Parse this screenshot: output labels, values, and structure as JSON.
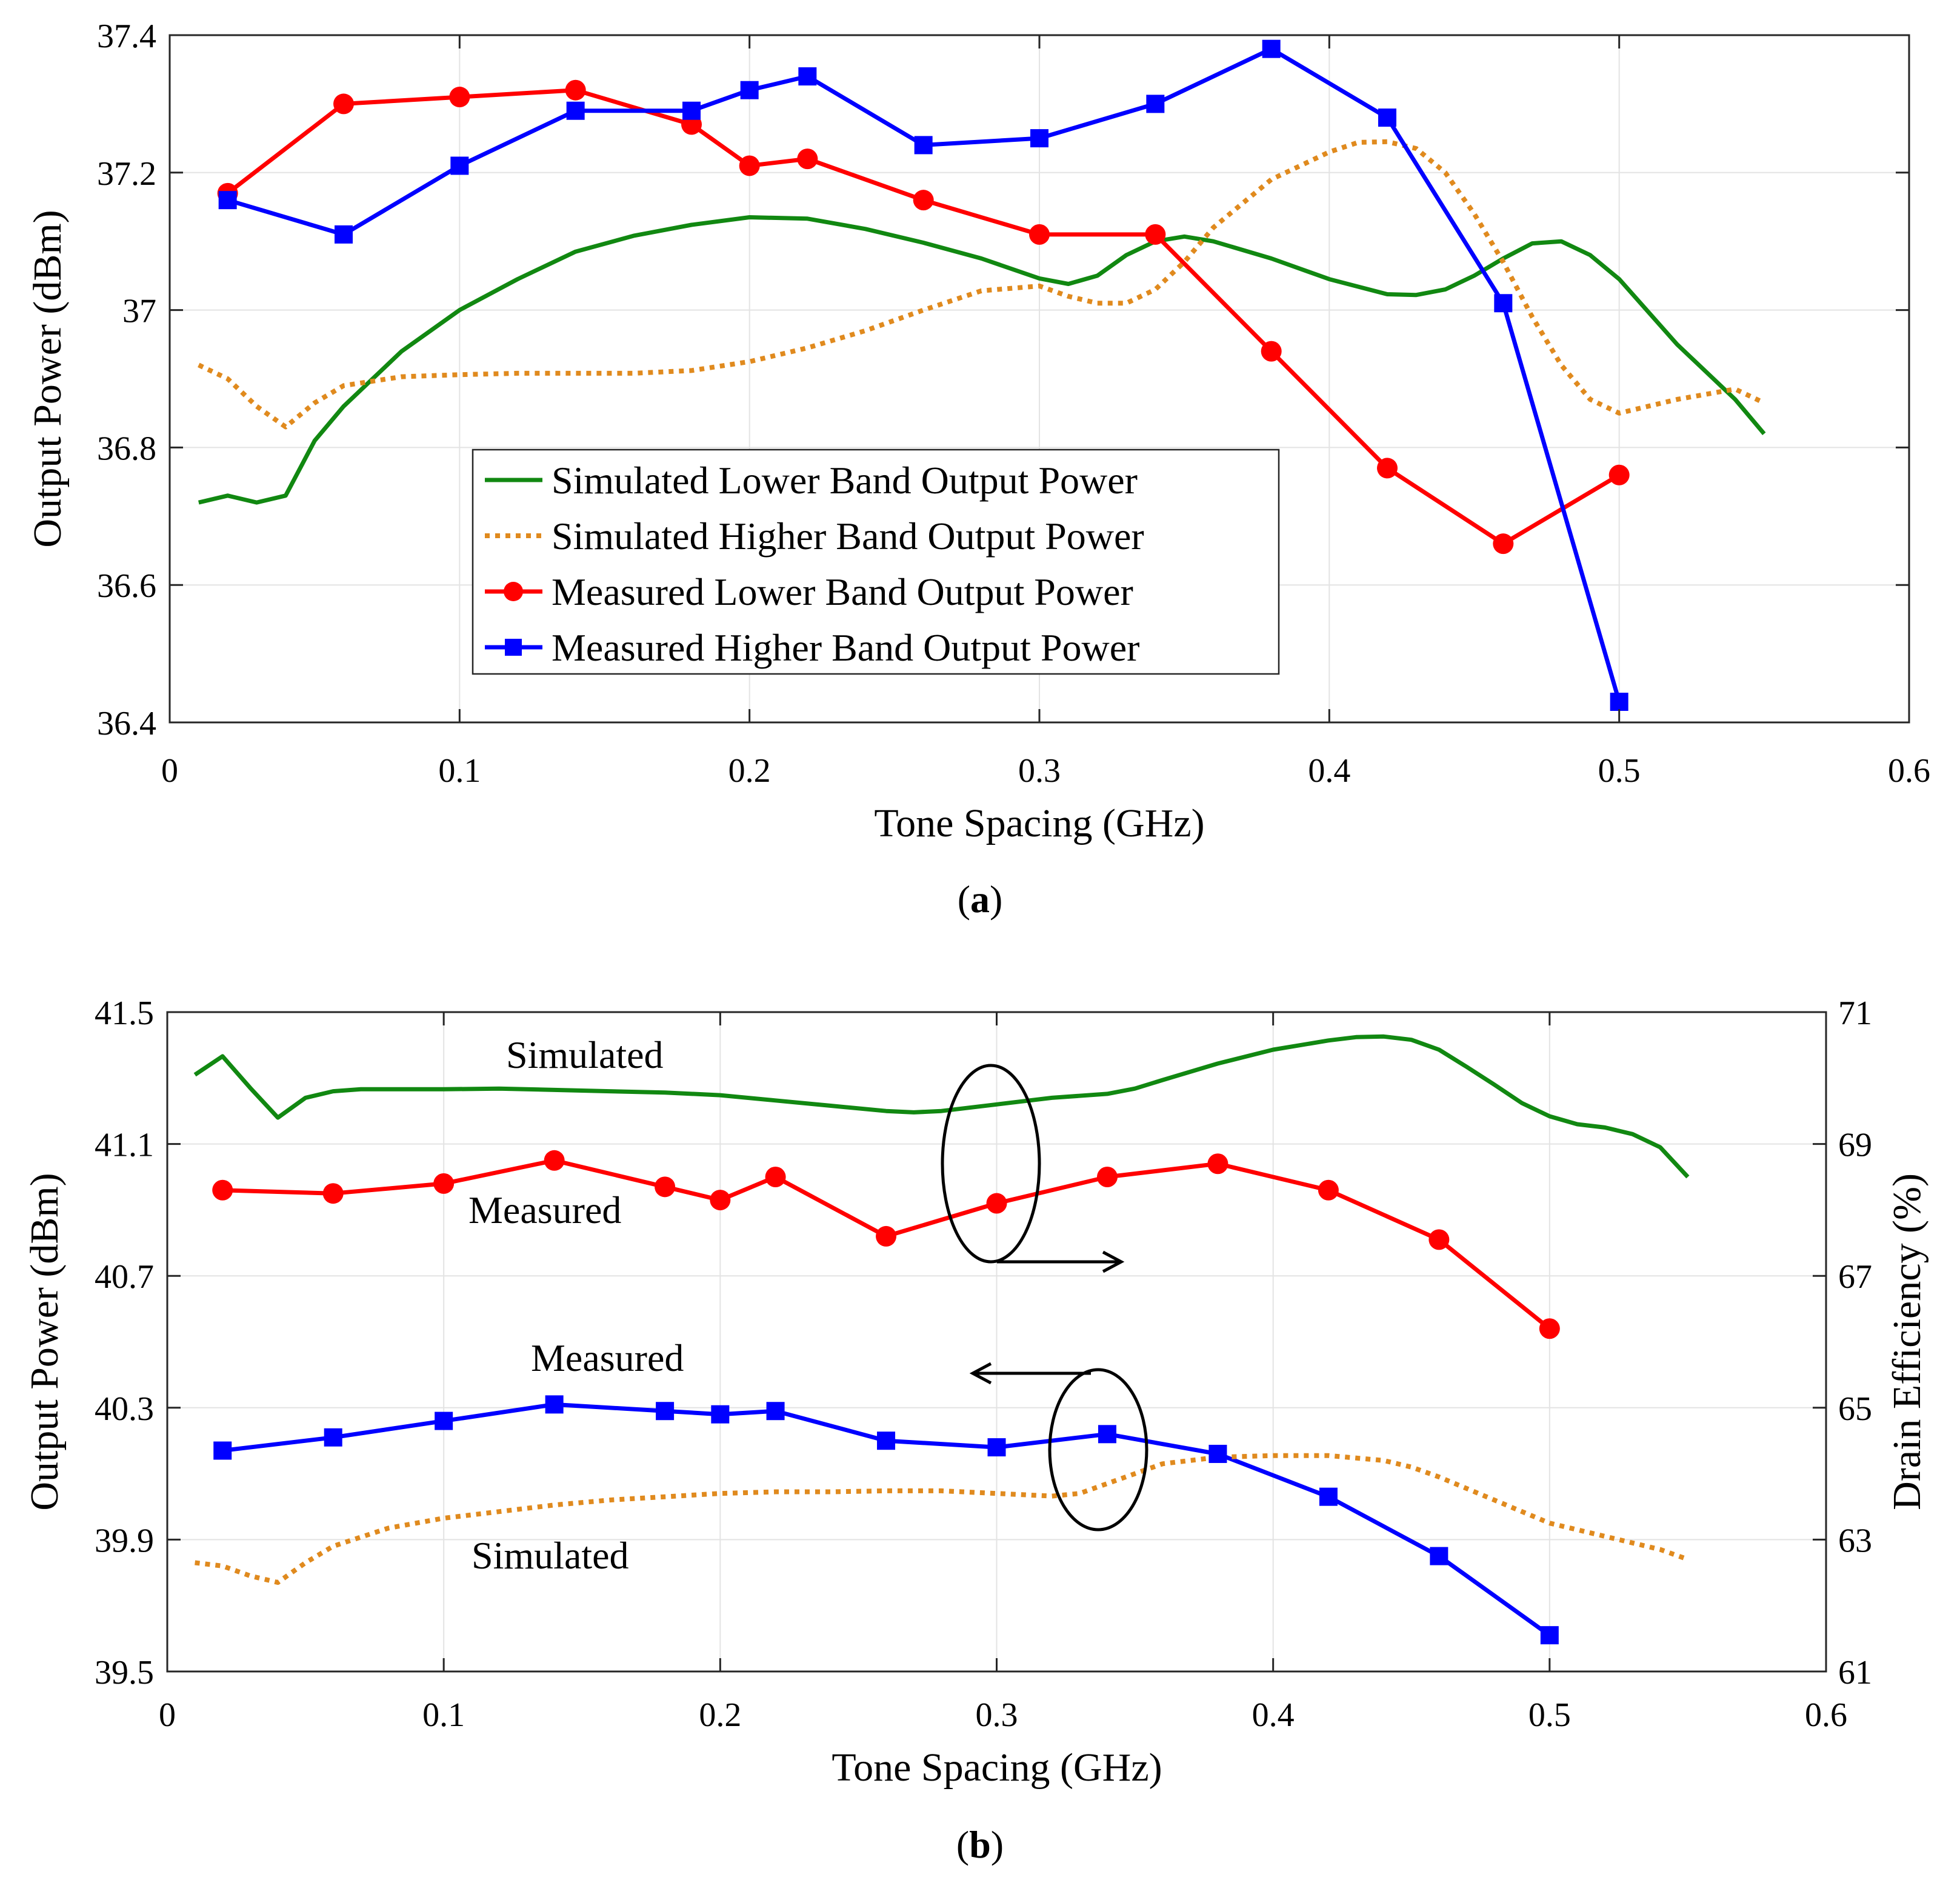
{
  "chart_data": [
    {
      "id": "a",
      "type": "line",
      "caption_label": "a",
      "xlabel": "Tone Spacing (GHz)",
      "ylabel": "Output Power (dBm)",
      "xlim": [
        0,
        0.6
      ],
      "ylim": [
        36.4,
        37.4
      ],
      "xticks": [
        "0",
        "0.1",
        "0.2",
        "0.3",
        "0.4",
        "0.5",
        "0.6"
      ],
      "yticks": [
        "36.4",
        "36.6",
        "36.8",
        "37",
        "37.2",
        "37.4"
      ],
      "grid": true,
      "legend_position": "center",
      "series": [
        {
          "name": "Simulated Lower Band Output Power",
          "color": "#118811",
          "style": "solid",
          "marker": "none",
          "x": [
            0.01,
            0.02,
            0.03,
            0.04,
            0.05,
            0.06,
            0.08,
            0.1,
            0.12,
            0.14,
            0.16,
            0.18,
            0.2,
            0.22,
            0.24,
            0.26,
            0.28,
            0.3,
            0.31,
            0.32,
            0.33,
            0.34,
            0.35,
            0.36,
            0.38,
            0.4,
            0.42,
            0.43,
            0.44,
            0.45,
            0.46,
            0.47,
            0.48,
            0.49,
            0.5,
            0.52,
            0.54,
            0.55
          ],
          "y": [
            36.72,
            36.73,
            36.72,
            36.73,
            36.81,
            36.86,
            36.94,
            37.0,
            37.045,
            37.085,
            37.108,
            37.124,
            37.135,
            37.133,
            37.118,
            37.098,
            37.075,
            37.046,
            37.038,
            37.05,
            37.08,
            37.1,
            37.107,
            37.1,
            37.075,
            37.045,
            37.023,
            37.022,
            37.03,
            37.05,
            37.075,
            37.097,
            37.1,
            37.08,
            37.045,
            36.95,
            36.87,
            36.82
          ]
        },
        {
          "name": "Simulated Higher Band Output Power",
          "color": "#E08A1E",
          "style": "dotted",
          "marker": "none",
          "x": [
            0.01,
            0.02,
            0.03,
            0.04,
            0.05,
            0.06,
            0.08,
            0.1,
            0.12,
            0.14,
            0.16,
            0.18,
            0.2,
            0.22,
            0.24,
            0.26,
            0.28,
            0.3,
            0.31,
            0.32,
            0.33,
            0.34,
            0.35,
            0.36,
            0.38,
            0.4,
            0.41,
            0.42,
            0.43,
            0.44,
            0.45,
            0.46,
            0.47,
            0.48,
            0.49,
            0.5,
            0.52,
            0.54,
            0.55
          ],
          "y": [
            36.92,
            36.9,
            36.86,
            36.83,
            36.865,
            36.89,
            36.903,
            36.906,
            36.908,
            36.908,
            36.908,
            36.912,
            36.925,
            36.945,
            36.97,
            37.0,
            37.028,
            37.035,
            37.02,
            37.01,
            37.01,
            37.03,
            37.07,
            37.12,
            37.19,
            37.23,
            37.244,
            37.245,
            37.235,
            37.2,
            37.14,
            37.07,
            36.99,
            36.92,
            36.87,
            36.85,
            36.87,
            36.885,
            36.865
          ]
        },
        {
          "name": "Measured Lower Band Output Power",
          "color": "#FF0000",
          "style": "solid",
          "marker": "circle",
          "x": [
            0.02,
            0.06,
            0.1,
            0.14,
            0.18,
            0.2,
            0.22,
            0.26,
            0.3,
            0.34,
            0.38,
            0.42,
            0.46,
            0.5
          ],
          "y": [
            37.17,
            37.3,
            37.31,
            37.32,
            37.27,
            37.21,
            37.22,
            37.16,
            37.11,
            37.11,
            36.94,
            36.77,
            36.66,
            36.76
          ]
        },
        {
          "name": "Measured Higher Band Output Power",
          "color": "#0000FF",
          "style": "solid",
          "marker": "square",
          "x": [
            0.02,
            0.06,
            0.1,
            0.14,
            0.18,
            0.2,
            0.22,
            0.26,
            0.3,
            0.34,
            0.38,
            0.42,
            0.46,
            0.5
          ],
          "y": [
            37.16,
            37.11,
            37.21,
            37.29,
            37.29,
            37.32,
            37.34,
            37.24,
            37.25,
            37.3,
            37.38,
            37.28,
            37.01,
            36.43
          ]
        }
      ]
    },
    {
      "id": "b",
      "type": "line",
      "caption_label": "b",
      "xlabel": "Tone Spacing (GHz)",
      "ylabel": "Output Power (dBm)",
      "ylabel_right": "Drain Efficiency (%)",
      "xlim": [
        0,
        0.6
      ],
      "ylim": [
        39.5,
        41.5
      ],
      "ylim_right": [
        61,
        71
      ],
      "xticks": [
        "0",
        "0.1",
        "0.2",
        "0.3",
        "0.4",
        "0.5",
        "0.6"
      ],
      "yticks": [
        "39.5",
        "39.9",
        "40.3",
        "40.7",
        "41.1",
        "41.5"
      ],
      "yticks_right": [
        "61",
        "63",
        "65",
        "67",
        "69",
        "71"
      ],
      "grid": true,
      "annotations": {
        "simulated_top": "Simulated",
        "measured_top": "Measured",
        "measured_bottom": "Measured",
        "simulated_bottom": "Simulated"
      },
      "series": [
        {
          "name": "Simulated Drain Efficiency",
          "axis": "right",
          "color": "#118811",
          "style": "solid",
          "marker": "none",
          "x": [
            0.01,
            0.02,
            0.03,
            0.04,
            0.05,
            0.06,
            0.07,
            0.08,
            0.1,
            0.12,
            0.14,
            0.16,
            0.18,
            0.2,
            0.22,
            0.24,
            0.26,
            0.27,
            0.28,
            0.3,
            0.32,
            0.34,
            0.35,
            0.36,
            0.38,
            0.4,
            0.42,
            0.43,
            0.44,
            0.45,
            0.46,
            0.47,
            0.48,
            0.49,
            0.5,
            0.51,
            0.52,
            0.53,
            0.54,
            0.55
          ],
          "y": [
            70.05,
            70.33,
            69.85,
            69.4,
            69.7,
            69.8,
            69.83,
            69.83,
            69.83,
            69.84,
            69.82,
            69.8,
            69.78,
            69.74,
            69.66,
            69.58,
            69.5,
            69.48,
            69.5,
            69.6,
            69.7,
            69.76,
            69.84,
            69.97,
            70.22,
            70.43,
            70.57,
            70.62,
            70.63,
            70.58,
            70.43,
            70.17,
            69.9,
            69.62,
            69.42,
            69.3,
            69.25,
            69.15,
            68.95,
            68.5
          ]
        },
        {
          "name": "Measured Drain Efficiency",
          "axis": "right",
          "color": "#FF0000",
          "style": "solid",
          "marker": "circle",
          "x": [
            0.02,
            0.06,
            0.1,
            0.14,
            0.18,
            0.2,
            0.22,
            0.26,
            0.3,
            0.34,
            0.38,
            0.42,
            0.46,
            0.5
          ],
          "y": [
            68.3,
            68.25,
            68.4,
            68.75,
            68.35,
            68.15,
            68.5,
            67.6,
            68.1,
            68.5,
            68.7,
            68.3,
            67.55,
            66.2
          ]
        },
        {
          "name": "Measured Output Power",
          "axis": "left",
          "color": "#0000FF",
          "style": "solid",
          "marker": "square",
          "x": [
            0.02,
            0.06,
            0.1,
            0.14,
            0.18,
            0.2,
            0.22,
            0.26,
            0.3,
            0.34,
            0.38,
            0.42,
            0.46,
            0.5
          ],
          "y": [
            40.17,
            40.21,
            40.26,
            40.31,
            40.29,
            40.28,
            40.29,
            40.2,
            40.18,
            40.22,
            40.16,
            40.03,
            39.85,
            39.61
          ]
        },
        {
          "name": "Simulated Output Power",
          "axis": "left",
          "color": "#E08A1E",
          "style": "dotted",
          "marker": "none",
          "x": [
            0.01,
            0.02,
            0.03,
            0.04,
            0.05,
            0.06,
            0.08,
            0.1,
            0.12,
            0.14,
            0.16,
            0.18,
            0.2,
            0.22,
            0.24,
            0.26,
            0.28,
            0.3,
            0.32,
            0.33,
            0.34,
            0.35,
            0.36,
            0.38,
            0.4,
            0.42,
            0.44,
            0.45,
            0.46,
            0.48,
            0.5,
            0.52,
            0.54,
            0.55
          ],
          "y": [
            39.83,
            39.82,
            39.79,
            39.77,
            39.83,
            39.88,
            39.935,
            39.965,
            39.985,
            40.005,
            40.02,
            40.03,
            40.04,
            40.045,
            40.045,
            40.048,
            40.048,
            40.04,
            40.032,
            40.04,
            40.07,
            40.1,
            40.13,
            40.15,
            40.155,
            40.155,
            40.14,
            40.12,
            40.09,
            40.02,
            39.95,
            39.91,
            39.87,
            39.84
          ]
        }
      ]
    }
  ]
}
